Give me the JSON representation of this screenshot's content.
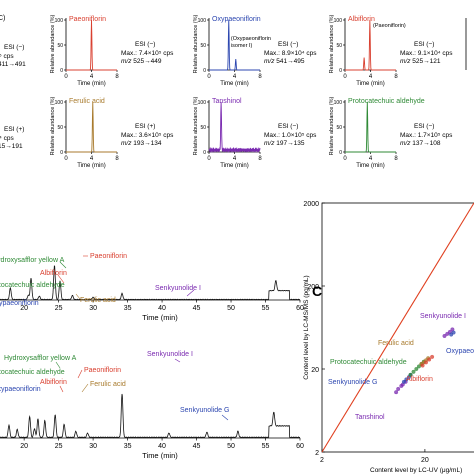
{
  "panel_c_label": "C",
  "chart_data": [
    {
      "type": "line",
      "title": "Paeoniflorin",
      "ylabel": "Relative abundance (%)",
      "xlabel": "Time (min)",
      "xticks": [
        "0",
        "4",
        "8"
      ],
      "yticks": [
        "0",
        "50",
        "100"
      ],
      "color": "#d94030",
      "peak_x": 4,
      "peaks": [
        {
          "x": 4.0,
          "y": 100
        }
      ],
      "ann_esi": "ESI (−)",
      "ann_max": "Max.: 7.4×10⁵ cps",
      "ann_mz": "m/z 525→449"
    },
    {
      "type": "line",
      "title": "Oxypaeoniflorin",
      "ylabel": "Relative abundance (%)",
      "xlabel": "Time (min)",
      "xticks": [
        "0",
        "4",
        "8"
      ],
      "yticks": [
        "0",
        "50",
        "100"
      ],
      "color": "#2d47b0",
      "peaks": [
        {
          "x": 3.1,
          "y": 100
        },
        {
          "x": 4.2,
          "y": 22
        }
      ],
      "peak_label": "(Oxypaeoniflorin isomer I)",
      "ann_esi": "ESI (−)",
      "ann_max": "Max.: 8.9×10⁴ cps",
      "ann_mz": "m/z 541→495"
    },
    {
      "type": "line",
      "title": "Albiflorin",
      "ylabel": "Relative abundance (%)",
      "xlabel": "Time (min)",
      "xticks": [
        "0",
        "4",
        "8"
      ],
      "yticks": [
        "0",
        "50",
        "100"
      ],
      "color": "#d94030",
      "peaks": [
        {
          "x": 3.0,
          "y": 25
        },
        {
          "x": 3.9,
          "y": 100
        }
      ],
      "peak_label": "(Paeoniflorin)",
      "ann_esi": "ESI (−)",
      "ann_max": "Max.: 9.1×10⁴ cps",
      "ann_mz": "m/z 525→121"
    },
    {
      "type": "line",
      "title": "Ferulic acid",
      "ylabel": "Relative abundance (%)",
      "xlabel": "Time (min)",
      "xticks": [
        "0",
        "4",
        "8"
      ],
      "yticks": [
        "0",
        "50",
        "100"
      ],
      "color": "#a87a2c",
      "peaks": [
        {
          "x": 4.2,
          "y": 100
        }
      ],
      "ann_esi": "ESI (+)",
      "ann_max": "Max.: 3.6×10⁵ cps",
      "ann_mz": "m/z 193→134"
    },
    {
      "type": "line",
      "title": "Tanshinol",
      "ylabel": "Relative abundance (%)",
      "xlabel": "Time (min)",
      "xticks": [
        "0",
        "4",
        "8"
      ],
      "yticks": [
        "0",
        "50",
        "100"
      ],
      "color": "#7a2ab0",
      "peaks": [
        {
          "x": 1.9,
          "y": 100
        }
      ],
      "ann_esi": "ESI (−)",
      "ann_max": "Max.: 1.0×10⁵ cps",
      "ann_mz": "m/z 197→135"
    },
    {
      "type": "line",
      "title": "Protocatechuic aldehyde",
      "ylabel": "Relative abundance (%)",
      "xlabel": "Time (min)",
      "xticks": [
        "0",
        "4",
        "8"
      ],
      "yticks": [
        "0",
        "50",
        "100"
      ],
      "color": "#2f8a36",
      "peaks": [
        {
          "x": 3.5,
          "y": 100
        }
      ],
      "ann_esi": "ESI (−)",
      "ann_max": "Max.: 1.7×10⁵ cps",
      "ann_mz": "m/z 137→108"
    },
    {
      "type": "line",
      "xlabel": "Time (min)",
      "xticks": [
        "20",
        "25",
        "30",
        "35",
        "40",
        "45",
        "50",
        "55",
        "60"
      ],
      "xlim": [
        16.5,
        60
      ],
      "peaks": [
        {
          "x": 18.0,
          "y": 34
        },
        {
          "x": 20.6,
          "y": 12
        },
        {
          "x": 21.0,
          "y": 62
        },
        {
          "x": 22.2,
          "y": 10
        },
        {
          "x": 24.4,
          "y": 100
        },
        {
          "x": 25.2,
          "y": 55
        },
        {
          "x": 27.0,
          "y": 12
        },
        {
          "x": 30.0,
          "y": 7
        },
        {
          "x": 34.2,
          "y": 18
        },
        {
          "x": 56.5,
          "y": 30
        }
      ],
      "labels": [
        {
          "text": "Hydroxysafflor yellow A",
          "color": "#2f8a36"
        },
        {
          "text": "Paeoniflorin",
          "color": "#d94030"
        },
        {
          "text": "Albiflorin",
          "color": "#d94030"
        },
        {
          "text": "Protocatechuic aldehyde",
          "color": "#2f8a36"
        },
        {
          "text": "Ferulic acid",
          "color": "#a87a2c"
        },
        {
          "text": "Oxypaeoniflorin",
          "color": "#2d47b0"
        },
        {
          "text": "Senkyunolide I",
          "color": "#7a2ab0"
        }
      ]
    },
    {
      "type": "line",
      "xlabel": "Time (min)",
      "xticks": [
        "20",
        "25",
        "30",
        "35",
        "40",
        "45",
        "50",
        "55",
        "60"
      ],
      "xlim": [
        16.5,
        60
      ],
      "peaks": [
        {
          "x": 17.8,
          "y": 28
        },
        {
          "x": 19.0,
          "y": 18
        },
        {
          "x": 20.8,
          "y": 48
        },
        {
          "x": 21.5,
          "y": 20
        },
        {
          "x": 22.0,
          "y": 42
        },
        {
          "x": 23.0,
          "y": 38
        },
        {
          "x": 24.5,
          "y": 52
        },
        {
          "x": 25.8,
          "y": 30
        },
        {
          "x": 27.5,
          "y": 14
        },
        {
          "x": 29.2,
          "y": 10
        },
        {
          "x": 34.2,
          "y": 100
        },
        {
          "x": 41.0,
          "y": 10
        },
        {
          "x": 46.5,
          "y": 12
        },
        {
          "x": 51.0,
          "y": 14
        },
        {
          "x": 56.2,
          "y": 32
        }
      ],
      "labels": [
        {
          "text": "Hydroxysafflor yellow A",
          "color": "#2f8a36"
        },
        {
          "text": "Senkyunolide I",
          "color": "#7a2ab0"
        },
        {
          "text": "Paeoniflorin",
          "color": "#d94030"
        },
        {
          "text": "Albiflorin",
          "color": "#d94030"
        },
        {
          "text": "Ferulic acid",
          "color": "#a87a2c"
        },
        {
          "text": "Protocatechuic aldehyde",
          "color": "#2f8a36"
        },
        {
          "text": "Oxypaeoniflorin",
          "color": "#2d47b0"
        },
        {
          "text": "Senkyunolide G",
          "color": "#2d47b0"
        }
      ]
    },
    {
      "type": "scatter",
      "xlabel": "Content level by LC-UV (μg/mL)",
      "ylabel": "Content level by LC-MS/MS (pg/mL)",
      "scale": "log",
      "xlim": [
        2,
        60
      ],
      "ylim": [
        2,
        2000
      ],
      "yticks": [
        "2",
        "20",
        "200",
        "2000"
      ],
      "xticks": [
        "2",
        "20"
      ],
      "fit_line": {
        "x": [
          2,
          60
        ],
        "y": [
          2,
          2000
        ],
        "color": "#e04020"
      },
      "series": [
        {
          "name": "Tanshinol",
          "color": "#7a2ab0",
          "points": [
            [
              10.5,
              10.5
            ],
            [
              11,
              11.5
            ],
            [
              11.8,
              12.5
            ],
            [
              12.2,
              13
            ],
            [
              13,
              14
            ]
          ]
        },
        {
          "name": "Senkyunolide G",
          "color": "#2d47b0",
          "points": [
            [
              12.5,
              14
            ],
            [
              13.2,
              15
            ],
            [
              14,
              16
            ],
            [
              14.5,
              17
            ]
          ]
        },
        {
          "name": "Protocatechuic aldehyde",
          "color": "#2f8a36",
          "points": [
            [
              14.5,
              17
            ],
            [
              15.5,
              18.5
            ],
            [
              16.5,
              20
            ],
            [
              17.5,
              21.5
            ],
            [
              18.5,
              23
            ],
            [
              19.5,
              24.5
            ]
          ]
        },
        {
          "name": "Ferulic acid",
          "color": "#a87a2c",
          "points": [
            [
              18.5,
              23
            ],
            [
              19.5,
              24
            ],
            [
              20.5,
              25.5
            ],
            [
              21.5,
              27
            ]
          ]
        },
        {
          "name": "Albiflorin",
          "color": "#d94030",
          "points": [
            [
              19,
              22
            ],
            [
              20.5,
              24
            ],
            [
              22,
              26
            ],
            [
              23.5,
              28
            ]
          ]
        },
        {
          "name": "Senkyunolide I",
          "color": "#7a2ab0",
          "points": [
            [
              31,
              50
            ],
            [
              33,
              53
            ],
            [
              35,
              56
            ],
            [
              37,
              60
            ]
          ]
        },
        {
          "name": "Oxypaeoniflorin",
          "color": "#2d47b0",
          "points": [
            [
              36,
              52
            ],
            [
              38,
              55
            ]
          ]
        }
      ]
    }
  ]
}
